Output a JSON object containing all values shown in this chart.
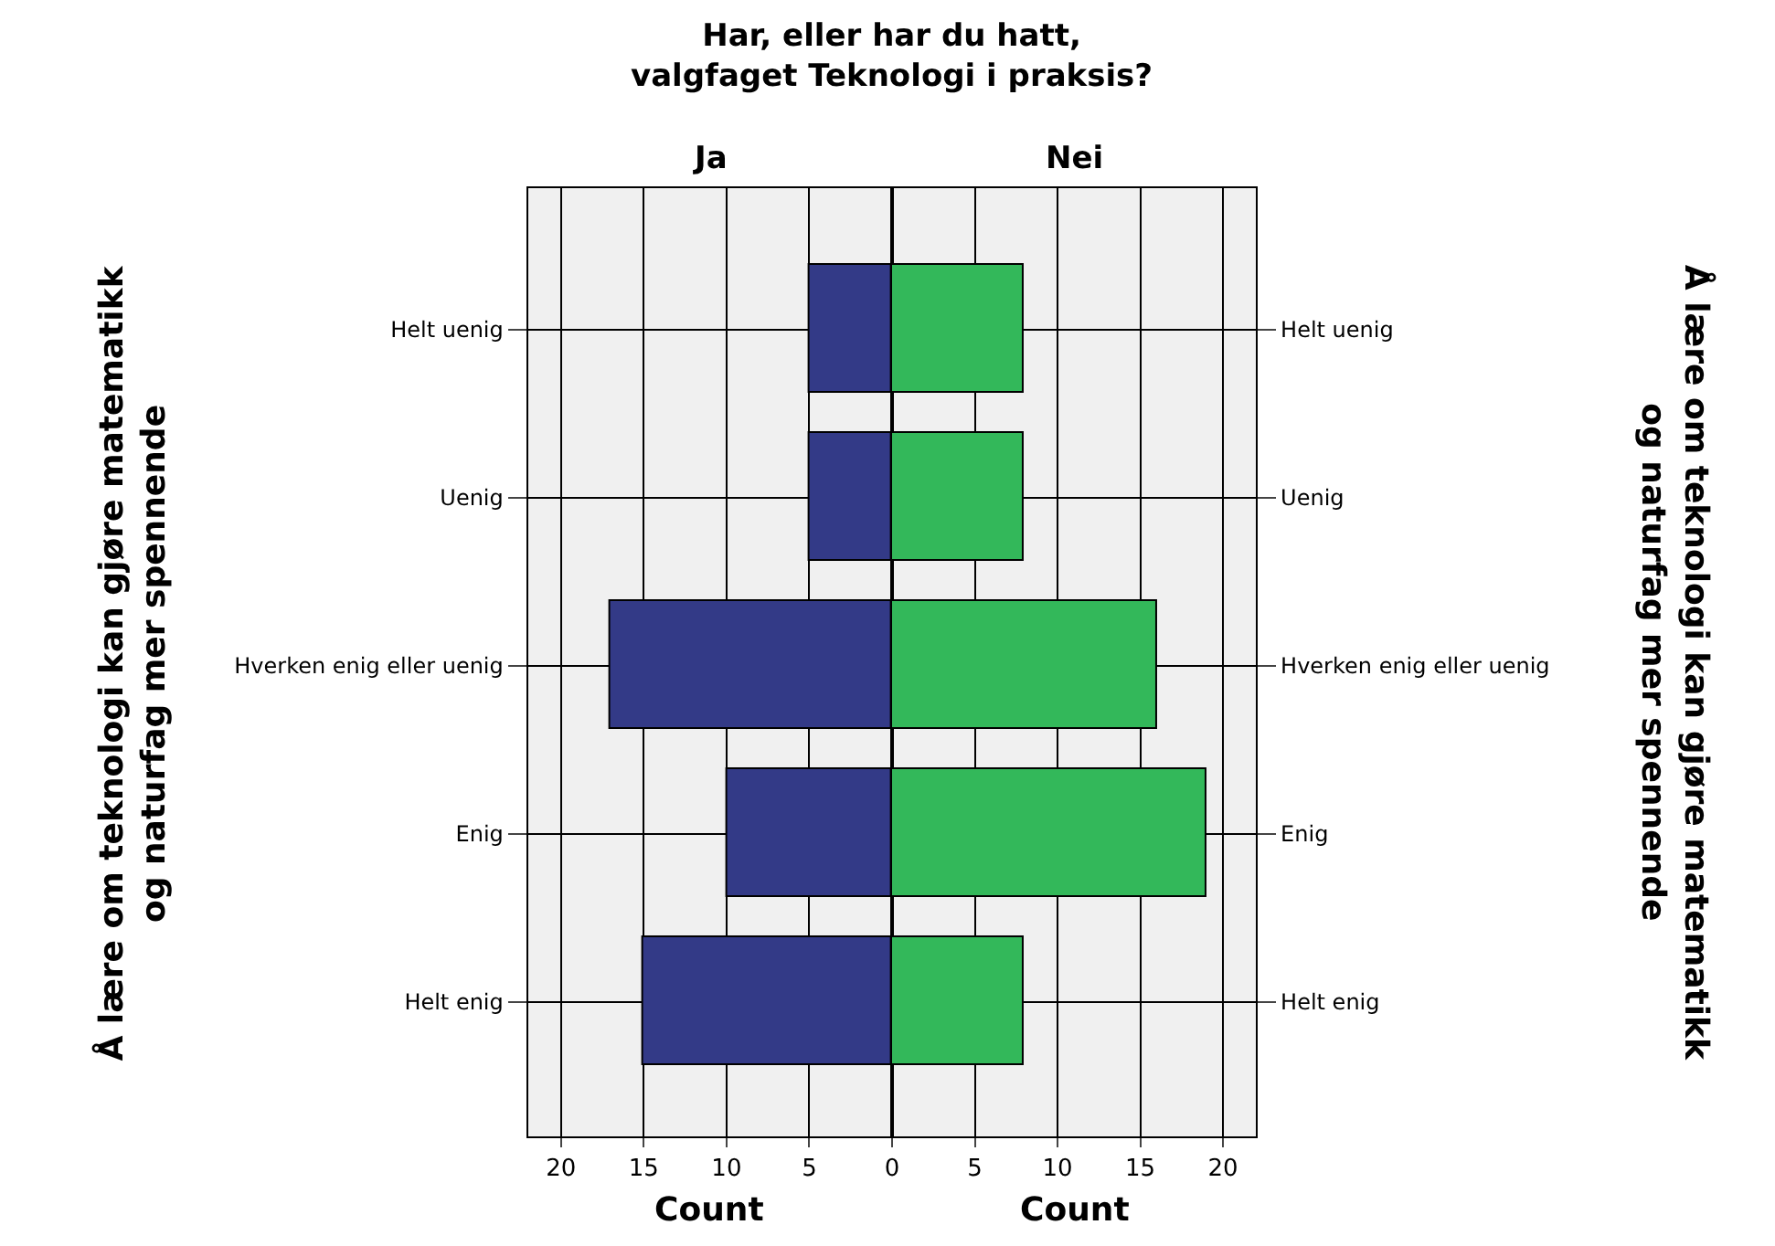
{
  "chart_data": [
    {
      "type": "bar",
      "orientation": "horizontal",
      "title": "Ja",
      "xlabel": "Count",
      "ylabel": "Å lære om teknologi kan gjøre matematikk\nog naturfag mer spennende",
      "annotations": [
        "Har, eller har du hatt,\nvalgfaget Teknologi i praksis?"
      ],
      "categories": [
        "Helt uenig",
        "Uenig",
        "Hverken enig eller uenig",
        "Enig",
        "Helt enig"
      ],
      "values": [
        5,
        5,
        17,
        10,
        15
      ],
      "color": "#333a87",
      "xlim": [
        22,
        0
      ],
      "xticks": [
        20,
        15,
        10,
        5,
        0
      ],
      "grid": true
    },
    {
      "type": "bar",
      "orientation": "horizontal",
      "title": "Nei",
      "xlabel": "Count",
      "ylabel": "Å lære om teknologi kan gjøre matematikk\nog naturfag mer spennende",
      "categories": [
        "Helt uenig",
        "Uenig",
        "Hverken enig eller uenig",
        "Enig",
        "Helt enig"
      ],
      "values": [
        8,
        8,
        16,
        19,
        8
      ],
      "color": "#33b85a",
      "xlim": [
        0,
        22
      ],
      "xticks": [
        {
          "value": 0,
          "label": null
        },
        5,
        10,
        15,
        20
      ],
      "grid": true
    }
  ]
}
